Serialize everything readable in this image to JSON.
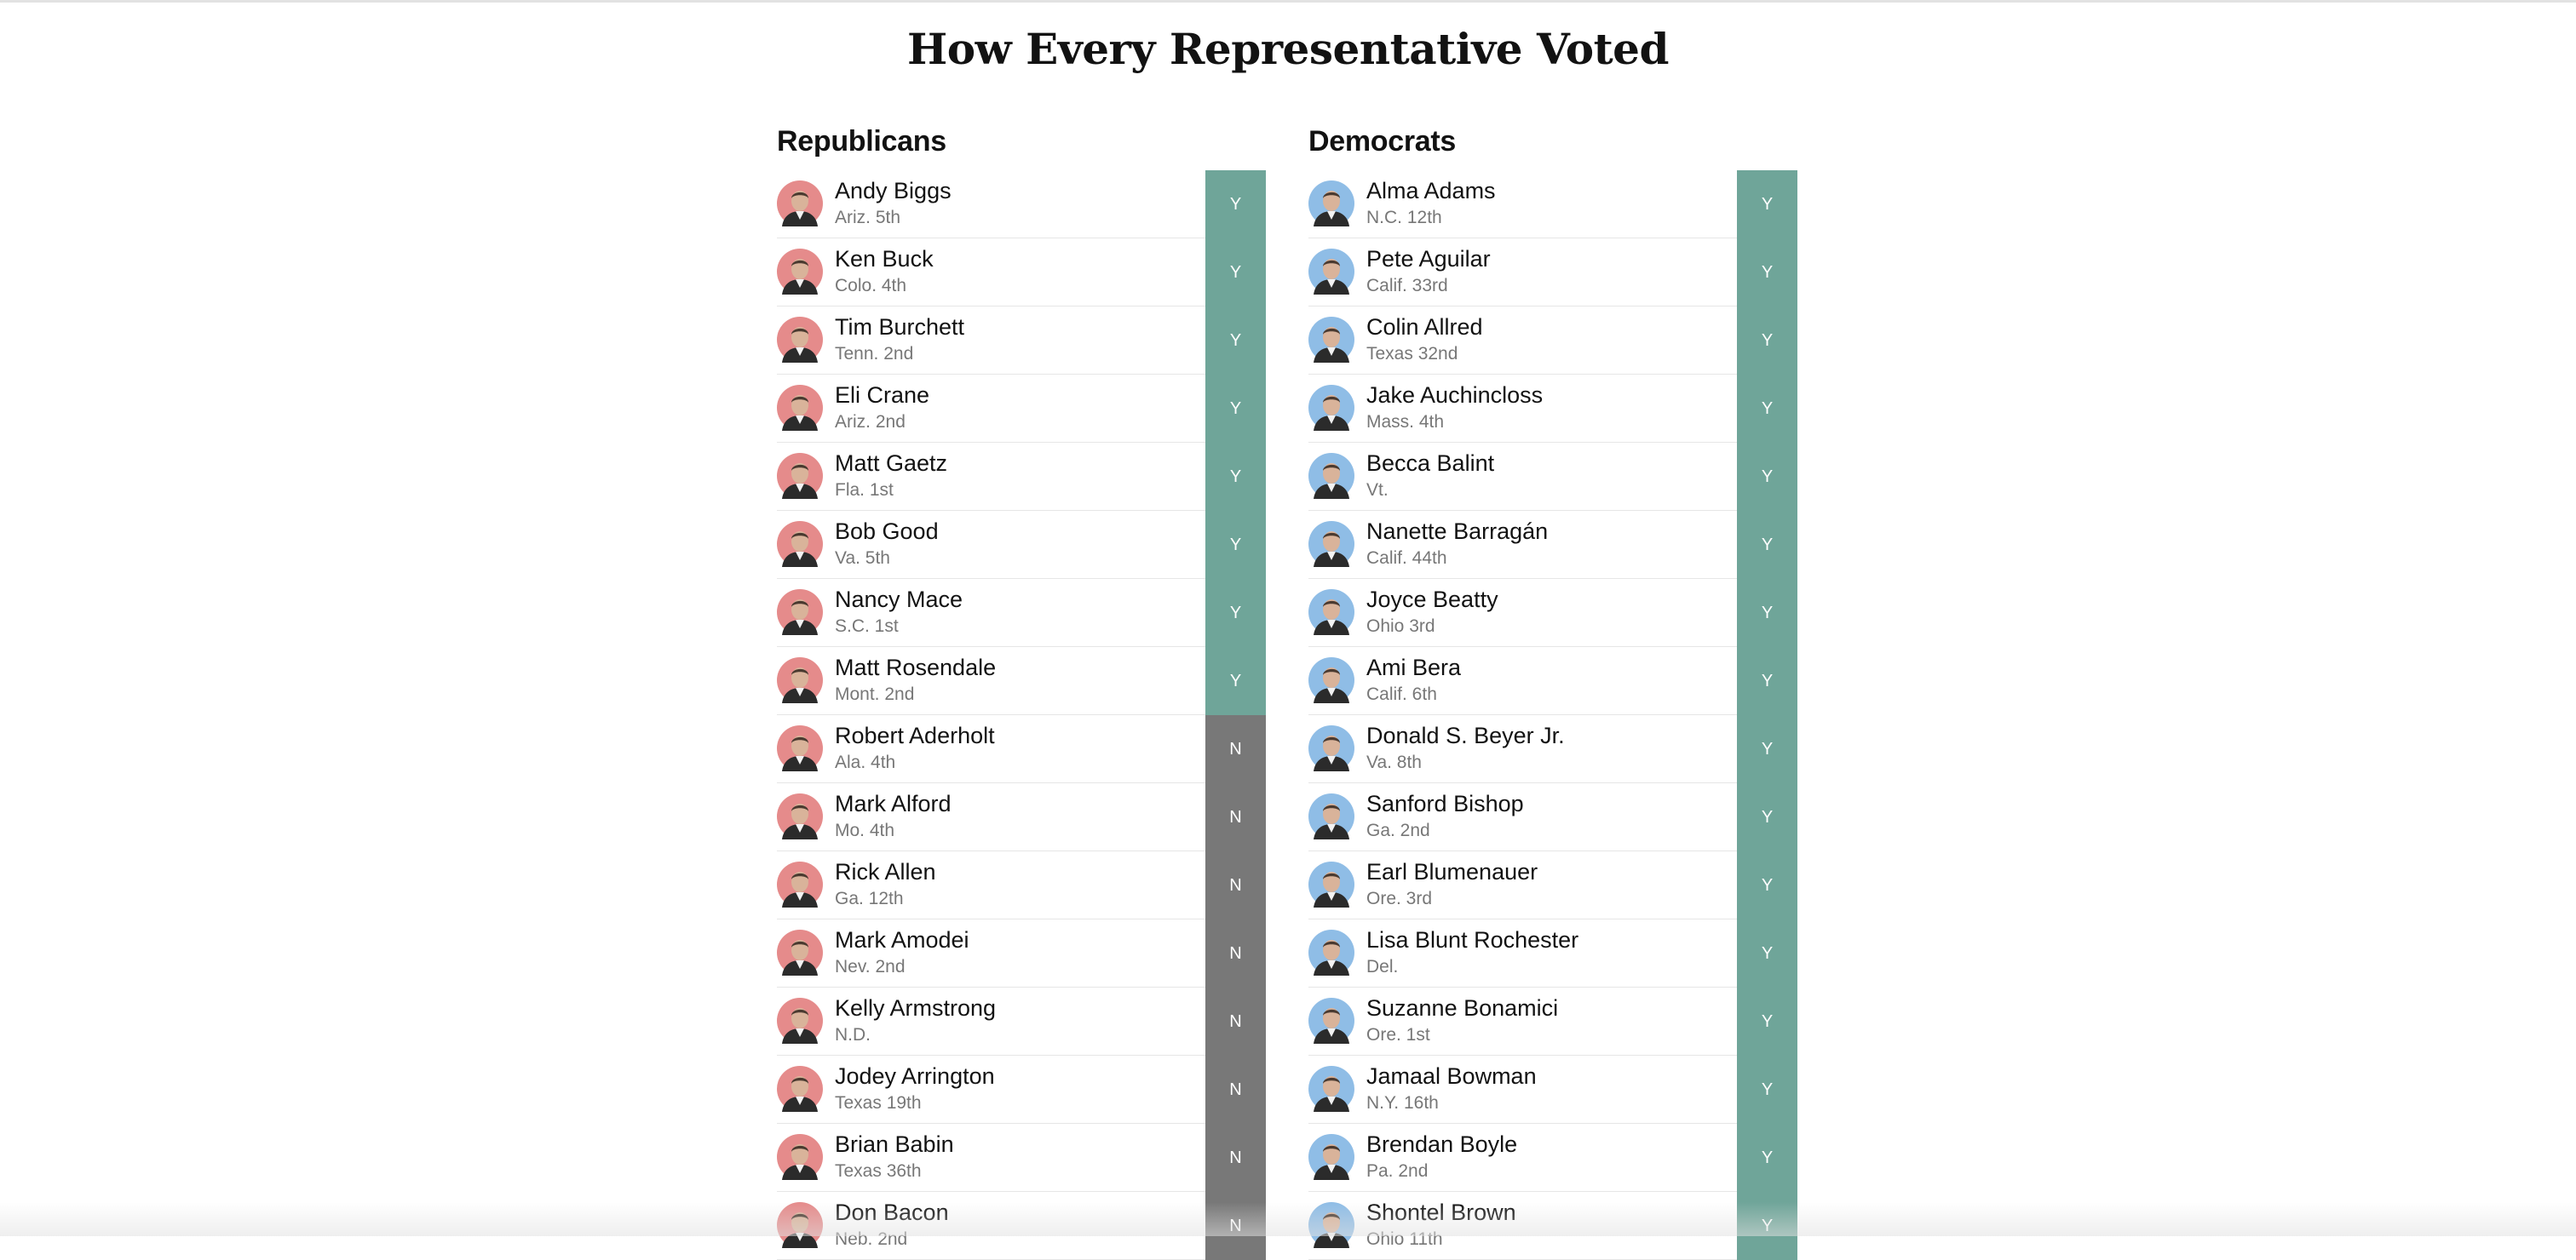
{
  "page": {
    "title": "How Every Representative Voted"
  },
  "colors": {
    "yes_bar": "#6fa599",
    "no_bar": "#787878",
    "republican_avatar_bg": "#e58b8b",
    "democrat_avatar_bg": "#8fbde6"
  },
  "republicans": {
    "heading": "Republicans",
    "members": [
      {
        "name": "Andy Biggs",
        "district": "Ariz. 5th",
        "vote": "Y"
      },
      {
        "name": "Ken Buck",
        "district": "Colo. 4th",
        "vote": "Y"
      },
      {
        "name": "Tim Burchett",
        "district": "Tenn. 2nd",
        "vote": "Y"
      },
      {
        "name": "Eli Crane",
        "district": "Ariz. 2nd",
        "vote": "Y"
      },
      {
        "name": "Matt Gaetz",
        "district": "Fla. 1st",
        "vote": "Y"
      },
      {
        "name": "Bob Good",
        "district": "Va. 5th",
        "vote": "Y"
      },
      {
        "name": "Nancy Mace",
        "district": "S.C. 1st",
        "vote": "Y"
      },
      {
        "name": "Matt Rosendale",
        "district": "Mont. 2nd",
        "vote": "Y"
      },
      {
        "name": "Robert Aderholt",
        "district": "Ala. 4th",
        "vote": "N"
      },
      {
        "name": "Mark Alford",
        "district": "Mo. 4th",
        "vote": "N"
      },
      {
        "name": "Rick Allen",
        "district": "Ga. 12th",
        "vote": "N"
      },
      {
        "name": "Mark Amodei",
        "district": "Nev. 2nd",
        "vote": "N"
      },
      {
        "name": "Kelly Armstrong",
        "district": "N.D.",
        "vote": "N"
      },
      {
        "name": "Jodey Arrington",
        "district": "Texas 19th",
        "vote": "N"
      },
      {
        "name": "Brian Babin",
        "district": "Texas 36th",
        "vote": "N"
      },
      {
        "name": "Don Bacon",
        "district": "Neb. 2nd",
        "vote": "N"
      }
    ]
  },
  "democrats": {
    "heading": "Democrats",
    "members": [
      {
        "name": "Alma Adams",
        "district": "N.C. 12th",
        "vote": "Y"
      },
      {
        "name": "Pete Aguilar",
        "district": "Calif. 33rd",
        "vote": "Y"
      },
      {
        "name": "Colin Allred",
        "district": "Texas 32nd",
        "vote": "Y"
      },
      {
        "name": "Jake Auchincloss",
        "district": "Mass. 4th",
        "vote": "Y"
      },
      {
        "name": "Becca Balint",
        "district": "Vt.",
        "vote": "Y"
      },
      {
        "name": "Nanette Barragán",
        "district": "Calif. 44th",
        "vote": "Y"
      },
      {
        "name": "Joyce Beatty",
        "district": "Ohio 3rd",
        "vote": "Y"
      },
      {
        "name": "Ami Bera",
        "district": "Calif. 6th",
        "vote": "Y"
      },
      {
        "name": "Donald S. Beyer Jr.",
        "district": "Va. 8th",
        "vote": "Y"
      },
      {
        "name": "Sanford Bishop",
        "district": "Ga. 2nd",
        "vote": "Y"
      },
      {
        "name": "Earl Blumenauer",
        "district": "Ore. 3rd",
        "vote": "Y"
      },
      {
        "name": "Lisa Blunt Rochester",
        "district": "Del.",
        "vote": "Y"
      },
      {
        "name": "Suzanne Bonamici",
        "district": "Ore. 1st",
        "vote": "Y"
      },
      {
        "name": "Jamaal Bowman",
        "district": "N.Y. 16th",
        "vote": "Y"
      },
      {
        "name": "Brendan Boyle",
        "district": "Pa. 2nd",
        "vote": "Y"
      },
      {
        "name": "Shontel Brown",
        "district": "Ohio 11th",
        "vote": "Y"
      }
    ]
  }
}
